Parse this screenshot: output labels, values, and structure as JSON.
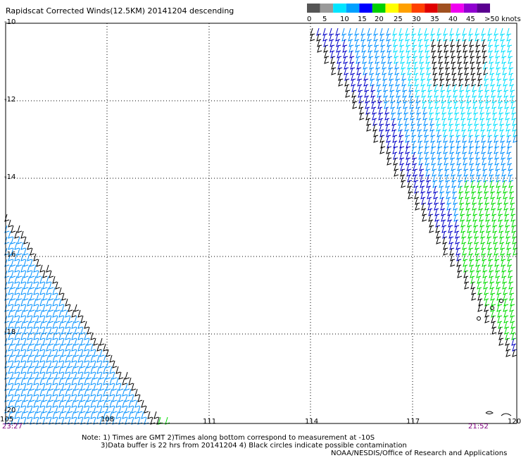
{
  "title": "Rapidscat Corrected Winds(12.5KM) 20141204 descending",
  "legend": {
    "labels": [
      "0",
      "5",
      "10",
      "15",
      "20",
      "25",
      "30",
      "35",
      "40",
      "45",
      ">50 knots"
    ],
    "colors": [
      "#555555",
      "#9a9a9a",
      "#00e5ff",
      "#00a0ff",
      "#0000ff",
      "#00d000",
      "#ffff00",
      "#ffa000",
      "#ff4000",
      "#e00000",
      "#a05020",
      "#f000f0",
      "#9000d0",
      "#5a0090"
    ]
  },
  "axes": {
    "y_ticks": [
      "-10",
      "-12",
      "-14",
      "-16",
      "-18",
      "-20"
    ],
    "x_ticks": [
      "105",
      "108",
      "111",
      "114",
      "117",
      "120"
    ]
  },
  "times": {
    "left": "23:27",
    "right": "21:52"
  },
  "notes": {
    "line1": "Note: 1) Times are GMT 2)Times along bottom correspond to measurement at -10S",
    "line2": "3)Data buffer is 22 hrs from 20141204 4) Black circles indicate possible contamination",
    "line3": "NOAA/NESDIS/Office of Research and Applications"
  },
  "wind_colors": {
    "black": "#000000",
    "dark_blue": "#0000c8",
    "blue": "#0090ff",
    "cyan": "#00e0ff",
    "green": "#00dd00"
  }
}
